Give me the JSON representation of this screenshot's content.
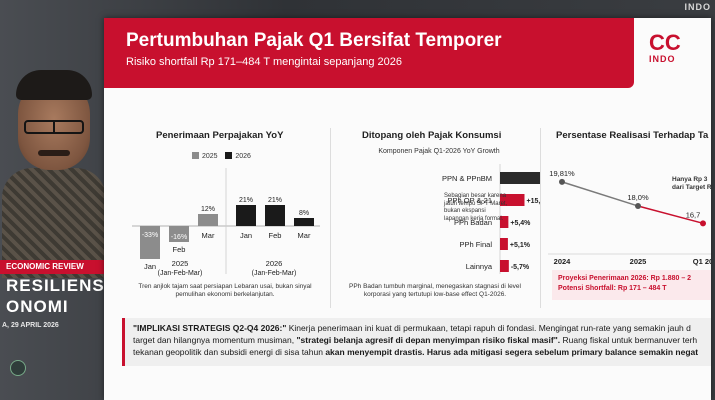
{
  "background": {
    "corner_logo": "INDO"
  },
  "slide": {
    "title": "Pertumbuhan Pajak Q1 Bersifat Temporer",
    "subtitle": "Risiko shortfall Rp 171–484 T mengintai sepanjang 2026",
    "logo": "CC",
    "logo_sub": "INDO"
  },
  "overlay": {
    "tag": "ECONOMIC REVIEW",
    "line1": "RESILIENSI",
    "line2": "ONOMI",
    "date": "A, 29 APRIL 2026"
  },
  "colors": {
    "accent": "#c8102e",
    "series_2025": "#8c8c8c",
    "series_2026": "#1a1a1a"
  },
  "chart_data": [
    {
      "type": "bar",
      "title": "Penerimaan Perpajakan YoY",
      "categories": [
        "Jan",
        "Feb",
        "Mar"
      ],
      "series": [
        {
          "name": "2025",
          "values": [
            -33,
            -16,
            12
          ],
          "labels": [
            "-33%",
            "-16%",
            "12%"
          ]
        },
        {
          "name": "2026",
          "values": [
            21,
            21,
            8
          ],
          "labels": [
            "21%",
            "21%",
            "8%"
          ]
        }
      ],
      "group_labels": [
        "2025",
        "(Jan-Feb-Mar)",
        "2026",
        "(Jan-Feb-Mar)"
      ],
      "note": "Tren anjlok tajam saat persiapan Lebaran usai, bukan sinyal pemulihan ekonomi berkelanjutan."
    },
    {
      "type": "bar",
      "orientation": "horizontal",
      "title": "Ditopang oleh Pajak Konsumsi",
      "subtitle": "Komponen Pajak Q1-2026 YoY Growth",
      "categories": [
        "PPN & PPnBM",
        "PPh OP & 21",
        "PPh Badan",
        "PPh Final",
        "Lainnya"
      ],
      "values": [
        57.7,
        15.8,
        5.4,
        5.1,
        -5.7
      ],
      "labels": [
        "+57,7%",
        "+15,8%",
        "+5,4%",
        "+5,1%",
        "-5,7%"
      ],
      "annotation": "Sebagian besar karena jatuh tempo SPT Maret, bukan ekspansi lapangan kerja formal.",
      "note": "PPh Badan tumbuh marginal, menegaskan stagnasi di level korporasi yang tertutupi low-base effect Q1-2026."
    },
    {
      "type": "line",
      "title": "Persentase Realisasi Terhadap Ta",
      "x": [
        "2024",
        "2025",
        "Q1 20"
      ],
      "y": [
        19.81,
        18.0,
        16.7
      ],
      "labels": [
        "19,81%",
        "18,0%",
        "16,7"
      ],
      "annotation_lines": [
        "Hanya Rp 3",
        "dari Target R"
      ],
      "footer_lines": [
        "Proyeksi Penerimaan 2026: Rp 1.880 – 2",
        "Potensi Shortfall: Rp 171 – 484 T"
      ]
    }
  ],
  "implication": {
    "label": "\"IMPLIKASI STRATEGIS Q2-Q4 2026:\"",
    "t1": " Kinerja penerimaan ini kuat di permukaan, tetapi rapuh di fondasi.",
    "t2": " Mengingat run-rate yang semakin jauh d",
    "t3": "target dan hilangnya momentum musiman, ",
    "t4": "\"strategi belanja agresif di depan menyimpan risiko fiskal masif\".",
    "t5": " Ruang fiskal untuk bermanuver terh",
    "t6": "tekanan geopolitik dan subsidi energi di sisa tahun ",
    "t7": "akan menyempit drastis. Harus ada mitigasi segera sebelum primary balance semakin negat"
  }
}
